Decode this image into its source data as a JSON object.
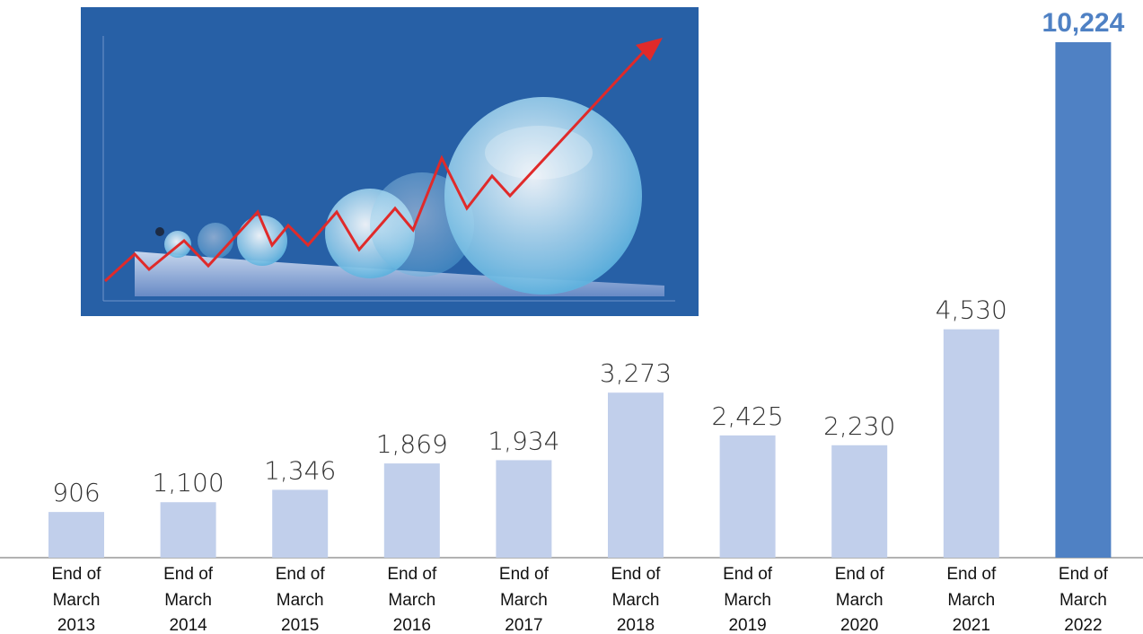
{
  "chart_data": {
    "type": "bar",
    "categories": [
      "End of March 2013",
      "End of March 2014",
      "End of March 2015",
      "End of March 2016",
      "End of March 2017",
      "End of March 2018",
      "End of March 2019",
      "End of March 2020",
      "End of March 2021",
      "End of March 2022"
    ],
    "values": [
      906,
      1100,
      1346,
      1869,
      1934,
      3273,
      2425,
      2230,
      4530,
      10224
    ],
    "value_labels": [
      "906",
      "1,100",
      "1,346",
      "1,869",
      "1,934",
      "3,273",
      "2,425",
      "2,230",
      "4,530",
      "10,224"
    ],
    "colors": [
      "#c1cfeb",
      "#c1cfeb",
      "#c1cfeb",
      "#c1cfeb",
      "#c1cfeb",
      "#c1cfeb",
      "#c1cfeb",
      "#c1cfeb",
      "#c1cfeb",
      "#4f81c4"
    ]
  }
}
